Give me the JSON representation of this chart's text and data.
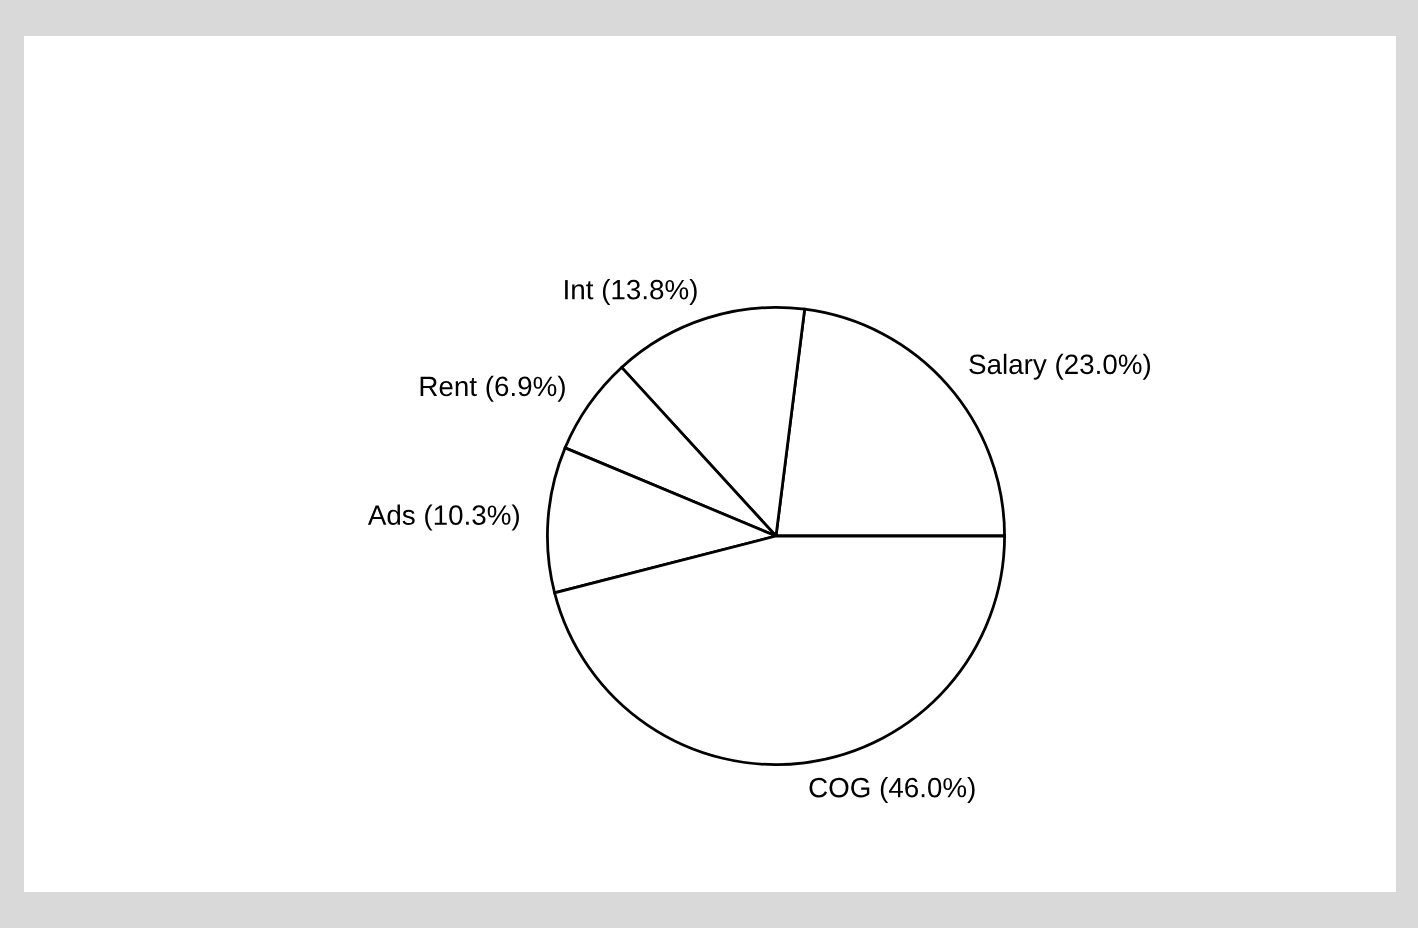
{
  "chart_data": {
    "type": "pie",
    "categories": [
      "Salary",
      "Int",
      "Rent",
      "Ads",
      "COG"
    ],
    "values": [
      23.0,
      13.8,
      6.9,
      10.3,
      46.0
    ],
    "colors": [
      "#ffffff",
      "#ffffff",
      "#ffffff",
      "#ffffff",
      "#ffffff"
    ],
    "value_labels": [
      "(23.0%)",
      "(13.8%)",
      "(6.9%)",
      "(10.3%)",
      "(46.0%)"
    ],
    "legend": false
  }
}
